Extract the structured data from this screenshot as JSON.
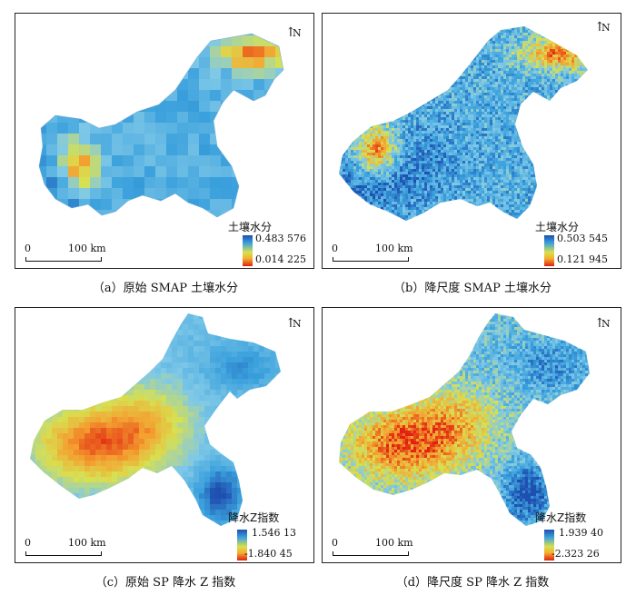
{
  "compass_label": "N",
  "scale_start": "0",
  "scale_end": "100 km",
  "panels": [
    {
      "caption": "（a）原始 SMAP 土壤水分",
      "legend_title": "土壤水分",
      "legend_max": "0.483 576",
      "legend_min": "0.014 225",
      "style": "coarse_moisture"
    },
    {
      "caption": "（b）降尺度 SMAP 土壤水分",
      "legend_title": "土壤水分",
      "legend_max": "0.503 545",
      "legend_min": "0.121 945",
      "style": "fine_moisture"
    },
    {
      "caption": "（c）原始 SP 降水 Z 指数",
      "legend_title": "降水Z指数",
      "legend_max": "1.546 13",
      "legend_min": "-1.840 45",
      "style": "coarse_precip"
    },
    {
      "caption": "（d）降尺度 SP 降水 Z 指数",
      "legend_title": "降水Z指数",
      "legend_max": "1.939 40",
      "legend_min": "-2.323 26",
      "style": "fine_precip"
    }
  ],
  "colors": {
    "deep_blue": "#1f4fb0",
    "blue": "#3aa0dc",
    "light_blue": "#7ec8e8",
    "yellow": "#d8e050",
    "orange": "#f4a030",
    "red": "#e02010"
  }
}
